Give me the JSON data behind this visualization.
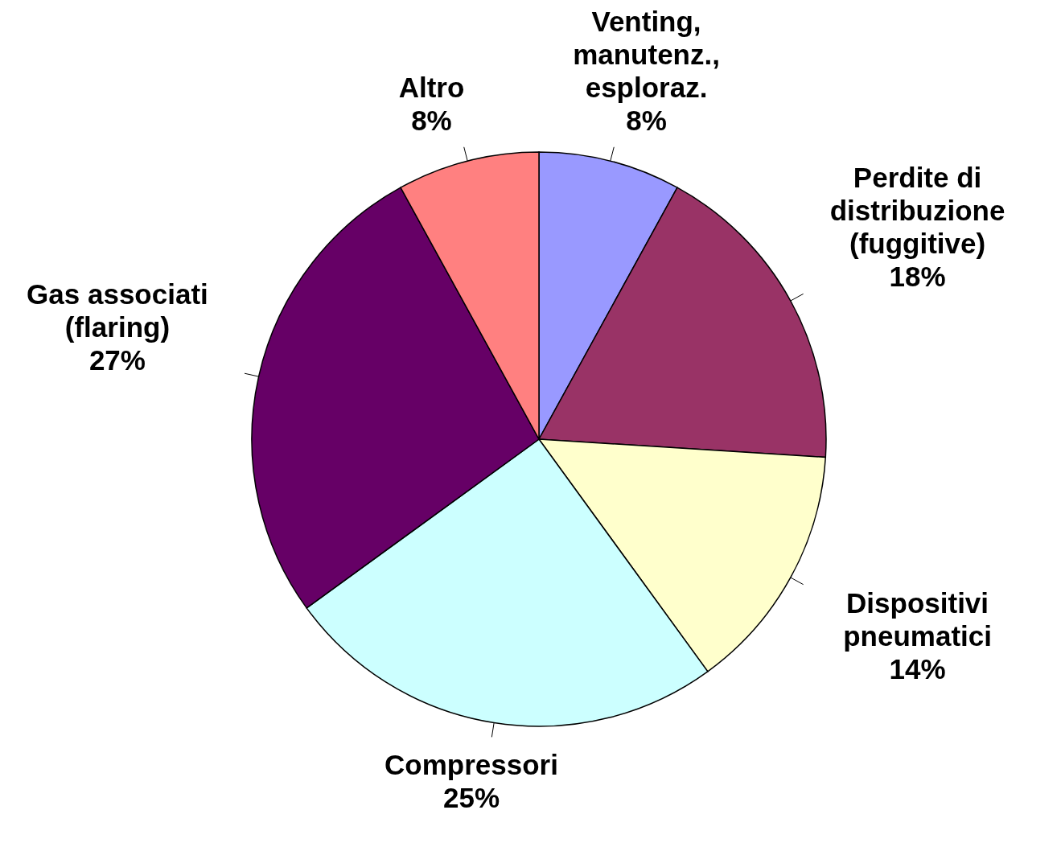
{
  "chart_data": {
    "type": "pie",
    "categories": [
      "Venting, manutenz., esploraz.",
      "Perdite di distribuzione (fuggitive)",
      "Dispositivi pneumatici",
      "Compressori",
      "Gas associati (flaring)",
      "Altro"
    ],
    "values": [
      8,
      18,
      14,
      25,
      27,
      8
    ],
    "value_labels": [
      "8%",
      "18%",
      "14%",
      "25%",
      "27%",
      "8%"
    ],
    "colors": [
      "#9999ff",
      "#993366",
      "#ffffcc",
      "#ccffff",
      "#660066",
      "#ff8080"
    ],
    "legend": false
  }
}
